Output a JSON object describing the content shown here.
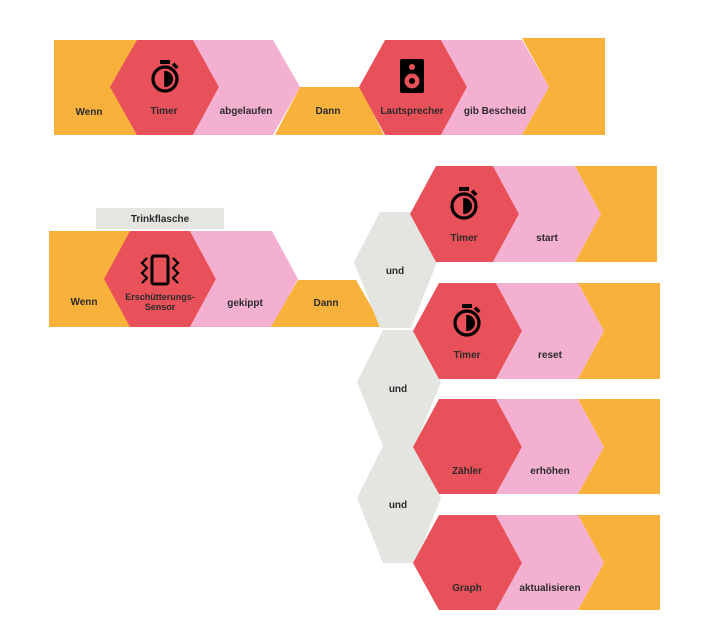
{
  "rule1": {
    "wenn": "Wenn",
    "trigger_device": "Timer",
    "trigger_event": "abgelaufen",
    "dann": "Dann",
    "action_device": "Lautsprecher",
    "action": "gib Bescheid"
  },
  "rule2": {
    "object_label": "Trinkflasche",
    "wenn": "Wenn",
    "trigger_device_line1": "Erschütterungs-",
    "trigger_device_line2": "Sensor",
    "trigger_event": "gekippt",
    "dann": "Dann",
    "and_1": "und",
    "and_2": "und",
    "and_3": "und",
    "actions": [
      {
        "device": "Timer",
        "action": "start"
      },
      {
        "device": "Timer",
        "action": "reset"
      },
      {
        "device": "Zähler",
        "action": "erhöhen"
      },
      {
        "device": "Graph",
        "action": "aktualisieren"
      }
    ]
  },
  "colors": {
    "orange": "#f8b23b",
    "red": "#e9515a",
    "pink": "#f4b0d0",
    "grey": "#e2e5e0"
  },
  "icons": {
    "timer": "stopwatch-icon",
    "speaker": "speaker-icon",
    "vibration": "vibration-icon"
  }
}
